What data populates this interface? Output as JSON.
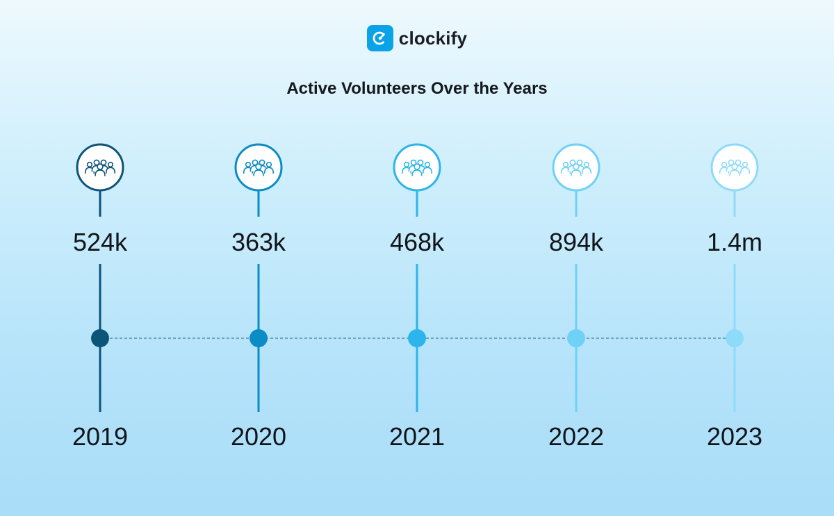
{
  "brand": {
    "name": "clockify",
    "logo_icon": "clockify-logo-icon"
  },
  "chart_data": {
    "type": "timeline",
    "title": "Active Volunteers Over the Years",
    "categories": [
      "2019",
      "2020",
      "2021",
      "2022",
      "2023"
    ],
    "values": [
      524000,
      363000,
      468000,
      894000,
      1400000
    ],
    "value_labels": [
      "524k",
      "363k",
      "468k",
      "894k",
      "1.4m"
    ],
    "icon": "people-group-icon",
    "colors": [
      "#0d5479",
      "#0a8cc4",
      "#2cb5ec",
      "#6fd1f8",
      "#8edbf9"
    ]
  }
}
